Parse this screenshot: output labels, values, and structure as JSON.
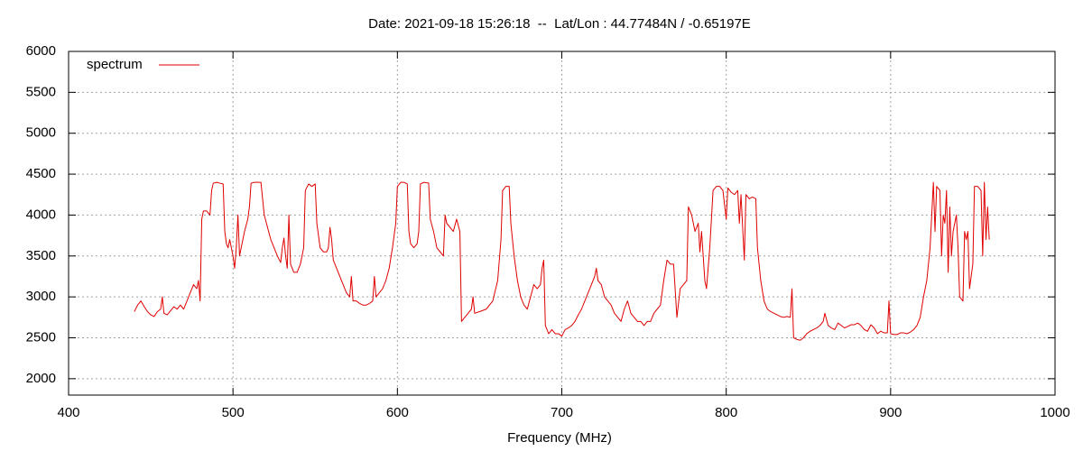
{
  "chart_data": {
    "type": "line",
    "title": "Date: 2021-09-18 15:26:18  --  Lat/Lon : 44.77484N / -0.65197E",
    "xlabel": "Frequency (MHz)",
    "xlim": [
      400,
      1000
    ],
    "xticks": [
      400,
      500,
      600,
      700,
      800,
      900,
      1000
    ],
    "ylim": [
      1800,
      6000
    ],
    "yticks": [
      2000,
      2500,
      3000,
      3500,
      4000,
      4500,
      5000,
      5500,
      6000
    ],
    "grid": true,
    "legend": "upper-left",
    "x": [
      440,
      442,
      444,
      446,
      448,
      450,
      452,
      454,
      456,
      457,
      458,
      460,
      462,
      464,
      466,
      468,
      470,
      472,
      474,
      476,
      478,
      479,
      480,
      481,
      482,
      484,
      486,
      487,
      488,
      490,
      492,
      494,
      495,
      496,
      497,
      498,
      500,
      501,
      502,
      503,
      504,
      505,
      507,
      509,
      510,
      511,
      513,
      515,
      517,
      518,
      519,
      521,
      523,
      525,
      527,
      529,
      530,
      531,
      532,
      533,
      534,
      535,
      537,
      539,
      541,
      543,
      544,
      546,
      548,
      550,
      551,
      553,
      555,
      557,
      558,
      559,
      560,
      561,
      563,
      565,
      567,
      569,
      571,
      572,
      573,
      575,
      577,
      579,
      581,
      583,
      585,
      586,
      587,
      589,
      591,
      593,
      595,
      597,
      599,
      600,
      602,
      604,
      606,
      607,
      608,
      610,
      612,
      613,
      614,
      616,
      619,
      620,
      622,
      624,
      626,
      628,
      629,
      630,
      632,
      634,
      636,
      638,
      639,
      641,
      643,
      645,
      646,
      647,
      650,
      654,
      658,
      661,
      663,
      664,
      666,
      668,
      669,
      671,
      673,
      675,
      677,
      679,
      681,
      683,
      685,
      687,
      688,
      689,
      690,
      692,
      694,
      696,
      698,
      700,
      702,
      704,
      706,
      708,
      710,
      712,
      714,
      716,
      718,
      720,
      721,
      722,
      724,
      726,
      728,
      730,
      732,
      734,
      736,
      738,
      740,
      742,
      744,
      746,
      748,
      750,
      752,
      754,
      756,
      758,
      760,
      762,
      764,
      766,
      768,
      770,
      772,
      774,
      776,
      777,
      779,
      781,
      783,
      784,
      785,
      787,
      788,
      790,
      792,
      794,
      796,
      798,
      800,
      801,
      803,
      805,
      807,
      808,
      809,
      811,
      812,
      814,
      816,
      818,
      819,
      821,
      823,
      825,
      827,
      829,
      831,
      833,
      835,
      837,
      839,
      840,
      841,
      843,
      845,
      847,
      849,
      851,
      853,
      855,
      857,
      859,
      860,
      862,
      864,
      866,
      868,
      870,
      872,
      874,
      876,
      878,
      880,
      882,
      884,
      886,
      888,
      890,
      892,
      894,
      896,
      898,
      899,
      900,
      902,
      904,
      906,
      908,
      910,
      912,
      914,
      916,
      918,
      920,
      922,
      924,
      926,
      927,
      928,
      930,
      931,
      932,
      933,
      934,
      935,
      936,
      937,
      938,
      940,
      941,
      942,
      944,
      945,
      946,
      947,
      948,
      950,
      951,
      953,
      955,
      956,
      957,
      958,
      959,
      960
    ],
    "series": [
      {
        "name": "spectrum",
        "color": "#e00000",
        "values": [
          2820,
          2900,
          2950,
          2880,
          2820,
          2780,
          2760,
          2820,
          2850,
          3000,
          2800,
          2780,
          2830,
          2880,
          2850,
          2900,
          2850,
          2950,
          3050,
          3150,
          3100,
          3200,
          2950,
          3950,
          4050,
          4050,
          4000,
          4300,
          4390,
          4400,
          4390,
          4380,
          3800,
          3650,
          3600,
          3700,
          3500,
          3350,
          3600,
          4000,
          3500,
          3600,
          3800,
          3950,
          4100,
          4390,
          4400,
          4400,
          4400,
          4200,
          4000,
          3850,
          3700,
          3600,
          3500,
          3420,
          3600,
          3720,
          3500,
          3350,
          4000,
          3400,
          3300,
          3300,
          3400,
          3600,
          4300,
          4380,
          4350,
          4380,
          3900,
          3600,
          3550,
          3550,
          3600,
          3850,
          3700,
          3450,
          3350,
          3250,
          3150,
          3050,
          3000,
          3250,
          2950,
          2950,
          2920,
          2900,
          2900,
          2920,
          2950,
          3250,
          3000,
          3050,
          3100,
          3200,
          3350,
          3600,
          3900,
          4350,
          4400,
          4400,
          4380,
          3800,
          3650,
          3600,
          3650,
          3800,
          4380,
          4400,
          4390,
          3950,
          3800,
          3600,
          3550,
          3500,
          4000,
          3900,
          3850,
          3800,
          3950,
          3800,
          2700,
          2750,
          2800,
          2850,
          3000,
          2800,
          2820,
          2850,
          2950,
          3200,
          3700,
          4300,
          4350,
          4350,
          3900,
          3500,
          3200,
          3000,
          2900,
          2850,
          3000,
          3150,
          3100,
          3150,
          3350,
          3450,
          2650,
          2550,
          2600,
          2550,
          2550,
          2520,
          2600,
          2620,
          2650,
          2700,
          2780,
          2850,
          2950,
          3050,
          3150,
          3250,
          3350,
          3200,
          3150,
          3000,
          2950,
          2900,
          2800,
          2750,
          2700,
          2850,
          2950,
          2800,
          2750,
          2700,
          2700,
          2650,
          2700,
          2700,
          2800,
          2850,
          2900,
          3200,
          3450,
          3400,
          3400,
          2750,
          3100,
          3150,
          3200,
          4100,
          4000,
          3800,
          3900,
          3550,
          3800,
          3200,
          3100,
          3600,
          4300,
          4350,
          4350,
          4300,
          3950,
          4330,
          4280,
          4250,
          4300,
          3900,
          4250,
          3450,
          4250,
          4200,
          4220,
          4200,
          3600,
          3200,
          2950,
          2850,
          2820,
          2800,
          2780,
          2760,
          2750,
          2760,
          2750,
          3100,
          2500,
          2480,
          2470,
          2500,
          2550,
          2580,
          2600,
          2620,
          2650,
          2700,
          2800,
          2650,
          2620,
          2600,
          2680,
          2650,
          2620,
          2640,
          2660,
          2660,
          2680,
          2650,
          2600,
          2580,
          2660,
          2620,
          2550,
          2580,
          2560,
          2560,
          2950,
          2550,
          2540,
          2540,
          2560,
          2560,
          2550,
          2570,
          2600,
          2650,
          2750,
          3000,
          3200,
          3600,
          4400,
          3800,
          4350,
          4300,
          3500,
          4000,
          3900,
          4300,
          3300,
          4100,
          3500,
          3800,
          4000,
          3600,
          3000,
          2950,
          3800,
          3700,
          3800,
          3100,
          3400,
          4350,
          4350,
          4300,
          3500,
          4400,
          3700,
          4100,
          3700
        ]
      }
    ]
  }
}
